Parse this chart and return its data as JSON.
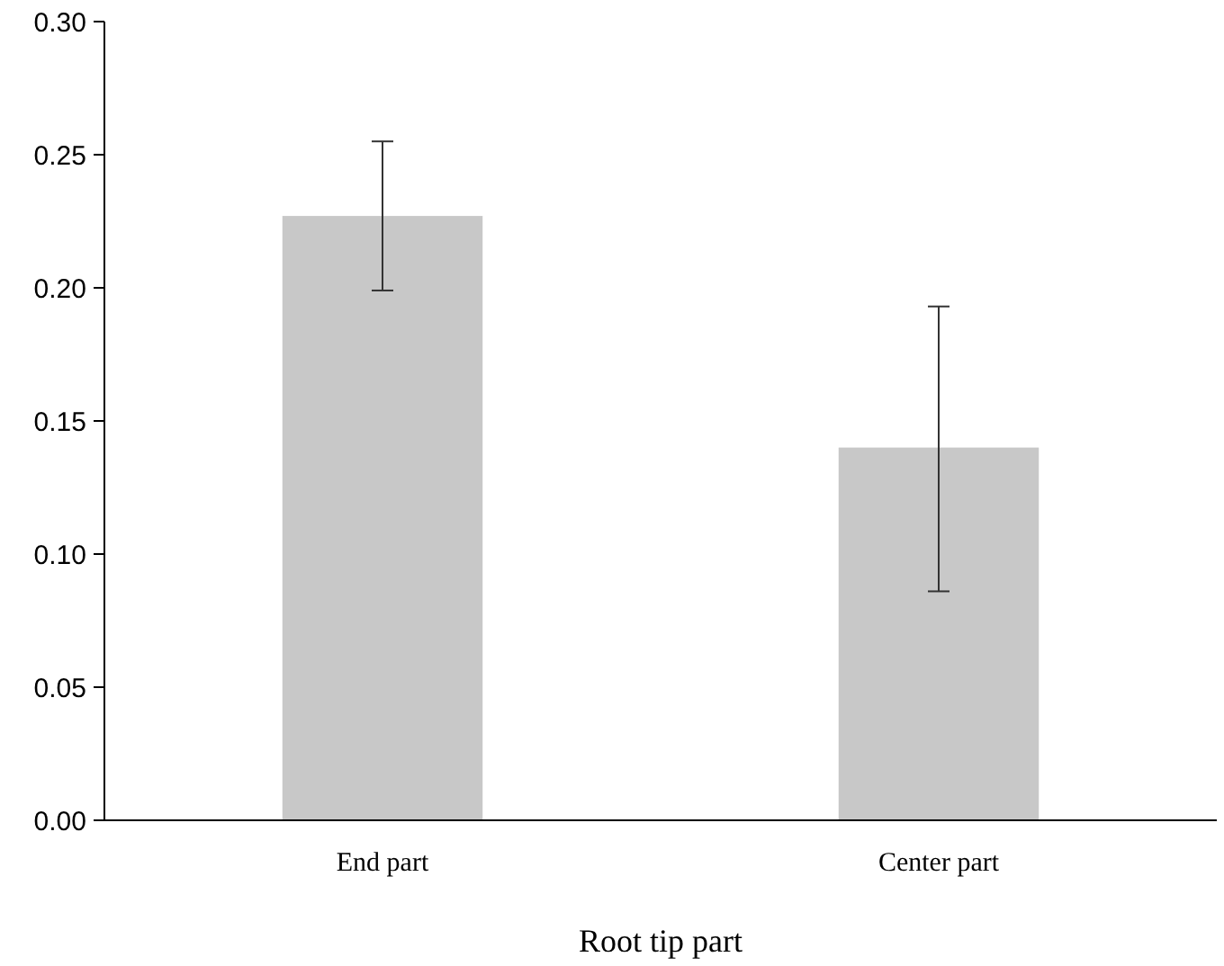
{
  "chart_data": {
    "type": "bar",
    "xlabel": "Root tip part",
    "categories": [
      "End part",
      "Center part"
    ],
    "values": [
      0.227,
      0.14
    ],
    "color": "#c8c8c8",
    "errors": [
      [
        0.199,
        0.255
      ],
      [
        0.086,
        0.193
      ]
    ],
    "ylim": [
      0,
      0.3
    ],
    "yticks": [
      {
        "value": 0,
        "label": "0.00"
      },
      {
        "value": 0.05,
        "label": "0.05"
      },
      {
        "value": 0.1,
        "label": "0.10"
      },
      {
        "value": 0.15,
        "label": "0.15"
      },
      {
        "value": 0.2,
        "label": "0.20"
      },
      {
        "value": 0.25,
        "label": "0.25"
      },
      {
        "value": 0.3,
        "label": "0.30"
      }
    ],
    "grid": false
  }
}
